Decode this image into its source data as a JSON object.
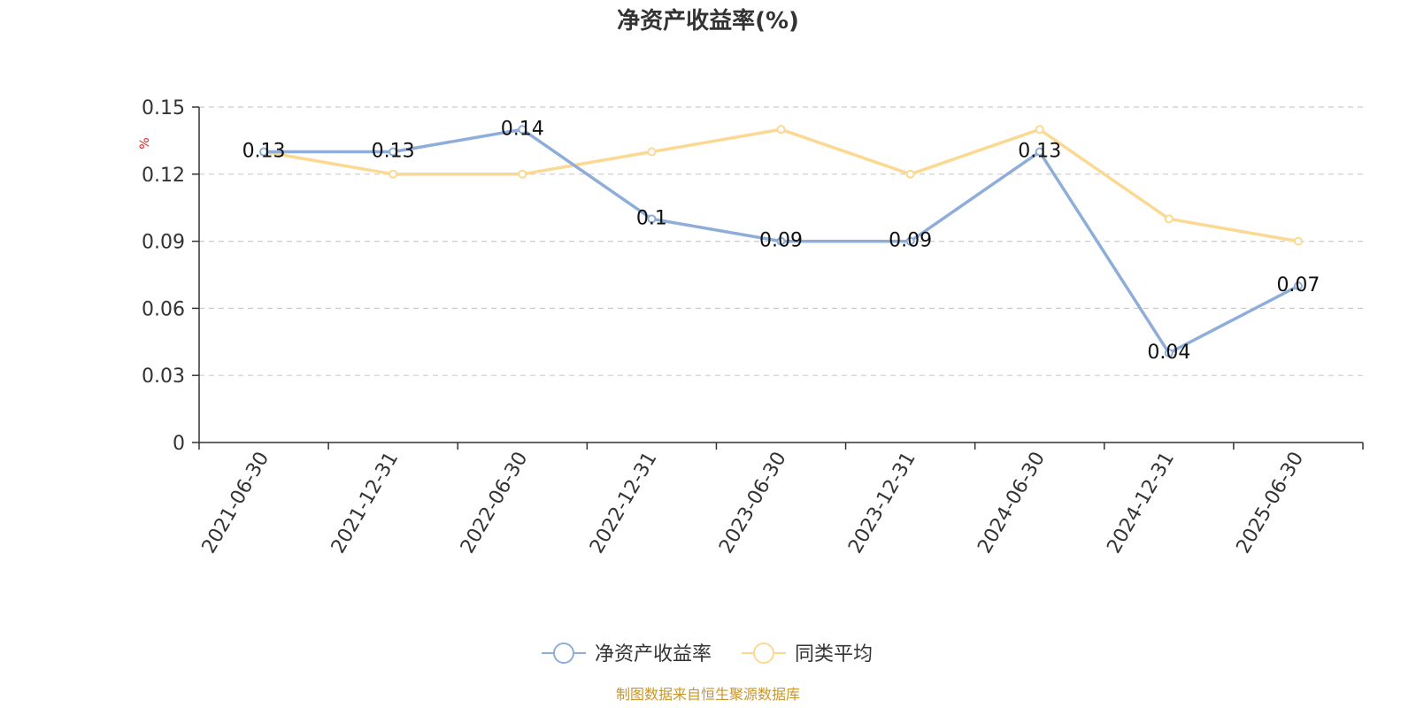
{
  "chart_data": {
    "type": "line",
    "title": "净资产收益率(%)",
    "ylabel": "%",
    "xlabel": "",
    "categories": [
      "2021-06-30",
      "2021-12-31",
      "2022-06-30",
      "2022-12-31",
      "2023-06-30",
      "2023-12-31",
      "2024-06-30",
      "2024-12-31",
      "2025-06-30"
    ],
    "ylim": [
      0,
      0.15
    ],
    "yticks": [
      "0",
      "0.03",
      "0.06",
      "0.09",
      "0.12",
      "0.15"
    ],
    "grid": true,
    "legend_position": "bottom-center",
    "series": [
      {
        "name": "净资产收益率",
        "color": "#8eaed9",
        "values": [
          0.13,
          0.13,
          0.14,
          0.1,
          0.09,
          0.09,
          0.13,
          0.04,
          0.07
        ],
        "labels": [
          "0.13",
          "0.13",
          "0.14",
          "0.1",
          "0.09",
          "0.09",
          "0.13",
          "0.04",
          "0.07"
        ]
      },
      {
        "name": "同类平均",
        "color": "#fcd993",
        "values": [
          0.13,
          0.12,
          0.12,
          0.13,
          0.14,
          0.12,
          0.14,
          0.1,
          0.09
        ]
      }
    ]
  },
  "source": "制图数据来自恒生聚源数据库"
}
